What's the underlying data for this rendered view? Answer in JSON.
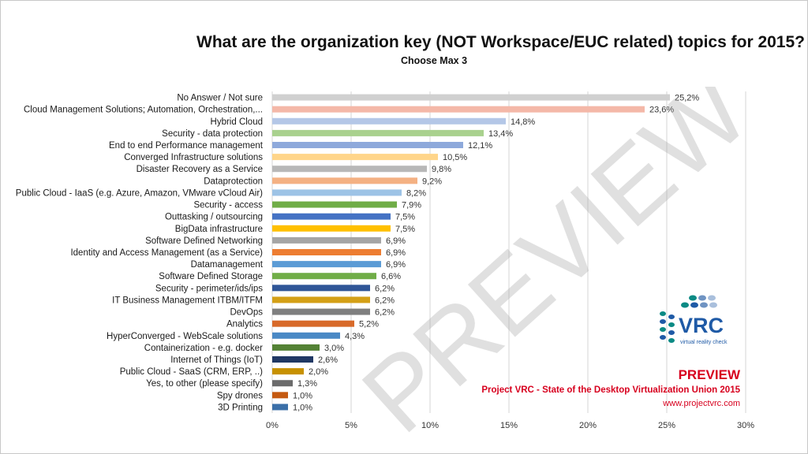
{
  "header": {
    "title": "What are the organization key (NOT Workspace/EUC related) topics for 2015?",
    "subtitle": "Choose Max 3"
  },
  "watermark": {
    "text": "PREVIEW"
  },
  "logo": {
    "brand": "VRC",
    "tagline": "virtual reality check"
  },
  "footer": {
    "preview_label": "PREVIEW",
    "source_line": "Project VRC - State of the Desktop Virtualization Union 2015",
    "url": "www.projectvrc.com"
  },
  "chart_data": {
    "type": "bar",
    "orientation": "horizontal",
    "title": "What are the organization key (NOT Workspace/EUC related) topics for 2015?",
    "subtitle": "Choose Max 3",
    "xlim": [
      0,
      30
    ],
    "xticks": [
      "0%",
      "5%",
      "10%",
      "15%",
      "20%",
      "25%",
      "30%"
    ],
    "grid": true,
    "categories": [
      "No Answer / Not sure",
      "Cloud Management Solutions; Automation, Orchestration,...",
      "Hybrid Cloud",
      "Security - data protection",
      "End to end Performance management",
      "Converged Infrastructure solutions",
      "Disaster Recovery as a Service",
      "Dataprotection",
      "Public Cloud - IaaS (e.g. Azure, Amazon, VMware vCloud Air)",
      "Security - access",
      "Outtasking / outsourcing",
      "BigData infrastructure",
      "Software Defined Networking",
      "Identity and Access Management (as a Service)",
      "Datamanagement",
      "Software Defined Storage",
      "Security - perimeter/ids/ips",
      "IT Business Management ITBM/ITFM",
      "DevOps",
      "Analytics",
      "HyperConverged - WebScale solutions",
      "Containerization - e.g. docker",
      "Internet of Things (IoT)",
      "Public Cloud - SaaS (CRM, ERP, ..)",
      "Yes, to other (please specify)",
      "Spy drones",
      "3D Printing"
    ],
    "values": [
      25.2,
      23.6,
      14.8,
      13.4,
      12.1,
      10.5,
      9.8,
      9.2,
      8.2,
      7.9,
      7.5,
      7.5,
      6.9,
      6.9,
      6.9,
      6.6,
      6.2,
      6.2,
      6.2,
      5.2,
      4.3,
      3.0,
      2.6,
      2.0,
      1.3,
      1.0,
      1.0
    ],
    "labels": [
      "25,2%",
      "23,6%",
      "14,8%",
      "13,4%",
      "12,1%",
      "10,5%",
      "9,8%",
      "9,2%",
      "8,2%",
      "7,9%",
      "7,5%",
      "7,5%",
      "6,9%",
      "6,9%",
      "6,9%",
      "6,6%",
      "6,2%",
      "6,2%",
      "6,2%",
      "5,2%",
      "4,3%",
      "3,0%",
      "2,6%",
      "2,0%",
      "1,3%",
      "1,0%",
      "1,0%"
    ],
    "colors": [
      "#d0d0d0",
      "#f4b8a8",
      "#b4c7e7",
      "#a9d18e",
      "#8ea9db",
      "#ffd58a",
      "#b8b8b8",
      "#f4b183",
      "#9dc3e6",
      "#70ad47",
      "#4472c4",
      "#ffc000",
      "#a5a5a5",
      "#ed7d31",
      "#5b9bd5",
      "#70ad47",
      "#2f5597",
      "#d4a017",
      "#7f7f7f",
      "#d86a2a",
      "#4a89c5",
      "#548235",
      "#203864",
      "#c79100",
      "#6b6b6b",
      "#c55a11",
      "#3b6fa8"
    ]
  }
}
